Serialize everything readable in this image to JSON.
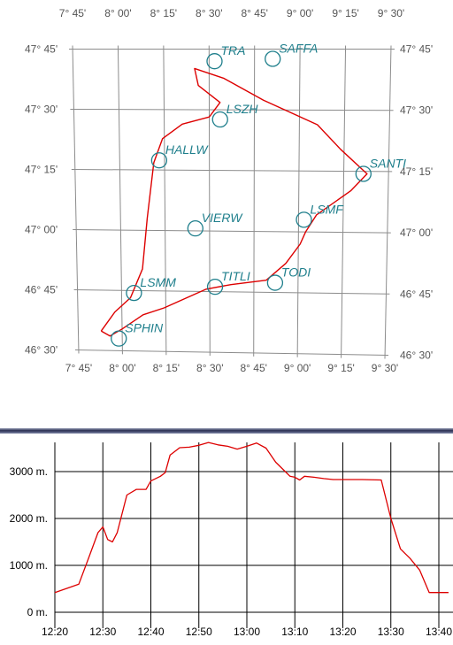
{
  "map": {
    "lon_labels": [
      "7° 45'",
      "8° 00'",
      "8° 15'",
      "8° 30'",
      "8° 45'",
      "9° 00'",
      "9° 15'",
      "9° 30'"
    ],
    "lat_labels": [
      "47° 45'",
      "47° 30'",
      "47° 15'",
      "47° 00'",
      "46° 45'",
      "46° 30'"
    ],
    "waypoints": [
      {
        "name": "TRA",
        "lon": 8.53,
        "lat": 47.7
      },
      {
        "name": "SAFFA",
        "lon": 8.85,
        "lat": 47.71
      },
      {
        "name": "LSZH",
        "lon": 8.56,
        "lat": 47.46
      },
      {
        "name": "HALLW",
        "lon": 8.22,
        "lat": 47.29
      },
      {
        "name": "SANTI",
        "lon": 9.36,
        "lat": 47.24
      },
      {
        "name": "LSMF",
        "lon": 9.03,
        "lat": 47.05
      },
      {
        "name": "VIERW",
        "lon": 8.42,
        "lat": 47.01
      },
      {
        "name": "TODI",
        "lon": 8.87,
        "lat": 46.79
      },
      {
        "name": "TITLI",
        "lon": 8.53,
        "lat": 46.77
      },
      {
        "name": "LSMM",
        "lon": 8.07,
        "lat": 46.74
      },
      {
        "name": "SPHIN",
        "lon": 7.98,
        "lat": 46.55
      }
    ],
    "track": [
      [
        7.88,
        46.58
      ],
      [
        7.96,
        46.66
      ],
      [
        8.05,
        46.72
      ],
      [
        8.12,
        46.84
      ],
      [
        8.15,
        47.05
      ],
      [
        8.19,
        47.28
      ],
      [
        8.24,
        47.38
      ],
      [
        8.35,
        47.44
      ],
      [
        8.5,
        47.47
      ],
      [
        8.56,
        47.53
      ],
      [
        8.44,
        47.6
      ],
      [
        8.42,
        47.67
      ],
      [
        8.58,
        47.63
      ],
      [
        8.8,
        47.54
      ],
      [
        9.1,
        47.44
      ],
      [
        9.23,
        47.34
      ],
      [
        9.38,
        47.24
      ],
      [
        9.29,
        47.17
      ],
      [
        9.1,
        47.07
      ],
      [
        9.04,
        47.0
      ],
      [
        9.01,
        46.95
      ],
      [
        8.93,
        46.87
      ],
      [
        8.82,
        46.8
      ],
      [
        8.62,
        46.78
      ],
      [
        8.48,
        46.76
      ],
      [
        8.36,
        46.72
      ],
      [
        8.24,
        46.68
      ],
      [
        8.12,
        46.65
      ],
      [
        8.0,
        46.59
      ],
      [
        7.93,
        46.56
      ],
      [
        7.88,
        46.58
      ]
    ],
    "colors": {
      "grid": "#8c8c8c",
      "track": "#dd0000",
      "waypoint": "#1f7f8c",
      "label": "#555555"
    }
  },
  "altitude": {
    "y_labels": [
      "3000 m.",
      "2000 m.",
      "1000 m.",
      "0 m."
    ],
    "x_labels": [
      "12:20",
      "12:30",
      "12:40",
      "12:50",
      "13:00",
      "13:10",
      "13:20",
      "13:30",
      "13:40"
    ],
    "unit": "m",
    "series": [
      [
        "12:20",
        420
      ],
      [
        "12:25",
        600
      ],
      [
        "12:27",
        1150
      ],
      [
        "12:29",
        1700
      ],
      [
        "12:30",
        1820
      ],
      [
        "12:31",
        1550
      ],
      [
        "12:32",
        1500
      ],
      [
        "12:33",
        1700
      ],
      [
        "12:35",
        2500
      ],
      [
        "12:37",
        2620
      ],
      [
        "12:39",
        2620
      ],
      [
        "12:40",
        2800
      ],
      [
        "12:42",
        2900
      ],
      [
        "12:43",
        2980
      ],
      [
        "12:44",
        3350
      ],
      [
        "12:46",
        3510
      ],
      [
        "12:48",
        3520
      ],
      [
        "12:50",
        3560
      ],
      [
        "12:52",
        3620
      ],
      [
        "12:54",
        3570
      ],
      [
        "12:56",
        3540
      ],
      [
        "12:58",
        3480
      ],
      [
        "13:00",
        3540
      ],
      [
        "13:02",
        3610
      ],
      [
        "13:04",
        3500
      ],
      [
        "13:06",
        3200
      ],
      [
        "13:08",
        3000
      ],
      [
        "13:09",
        2900
      ],
      [
        "13:10",
        2880
      ],
      [
        "13:11",
        2820
      ],
      [
        "13:12",
        2900
      ],
      [
        "13:14",
        2880
      ],
      [
        "13:16",
        2850
      ],
      [
        "13:18",
        2830
      ],
      [
        "13:20",
        2830
      ],
      [
        "13:24",
        2830
      ],
      [
        "13:28",
        2820
      ],
      [
        "13:30",
        2000
      ],
      [
        "13:32",
        1350
      ],
      [
        "13:34",
        1150
      ],
      [
        "13:36",
        900
      ],
      [
        "13:38",
        420
      ],
      [
        "13:40",
        420
      ],
      [
        "13:42",
        420
      ]
    ],
    "colors": {
      "grid": "#000000",
      "line": "#dd0000",
      "text": "#000000"
    }
  }
}
